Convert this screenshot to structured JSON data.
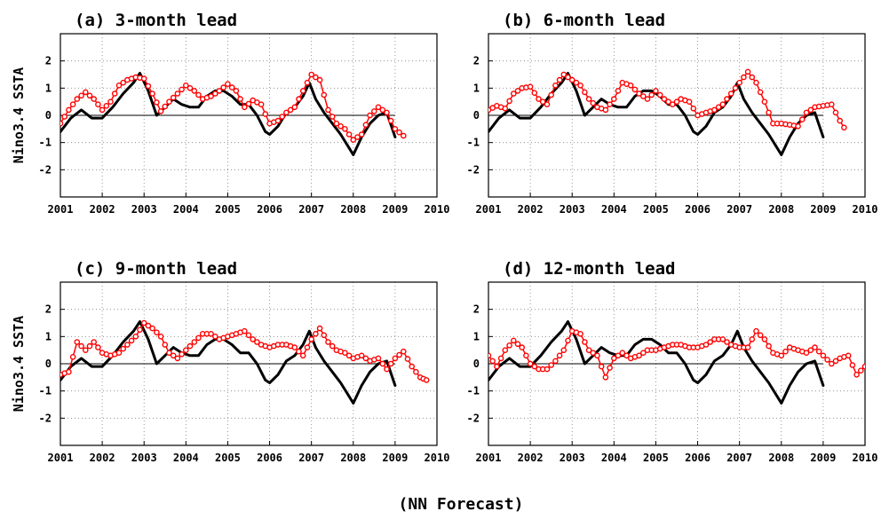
{
  "figure": {
    "footer": "(NN Forecast)"
  },
  "colors": {
    "observed": "#000000",
    "forecast": "#ff0000",
    "grid": "#808080"
  },
  "chart_data": [
    {
      "type": "line",
      "title": "(a) 3-month lead",
      "xlabel": "",
      "ylabel": "Nino3.4 SSTA",
      "xlim": [
        2001,
        2010
      ],
      "ylim": [
        -3,
        3
      ],
      "xticks": [
        "2001",
        "2002",
        "2003",
        "2004",
        "2005",
        "2006",
        "2007",
        "2008",
        "2009",
        "2010"
      ],
      "yticks": [
        "2",
        "1",
        "0",
        "-1",
        "-2"
      ],
      "grid": true,
      "series": [
        {
          "style": "solid-black",
          "x": [
            2001.0,
            2001.25,
            2001.5,
            2001.75,
            2002.0,
            2002.25,
            2002.5,
            2002.75,
            2002.9,
            2003.1,
            2003.3,
            2003.5,
            2003.7,
            2003.9,
            2004.1,
            2004.3,
            2004.5,
            2004.7,
            2004.9,
            2005.1,
            2005.3,
            2005.5,
            2005.7,
            2005.9,
            2006.0,
            2006.2,
            2006.4,
            2006.6,
            2006.8,
            2006.95,
            2007.1,
            2007.3,
            2007.5,
            2007.7,
            2007.9,
            2008.0,
            2008.2,
            2008.4,
            2008.6,
            2008.8,
            2009.0
          ],
          "y": [
            -0.6,
            -0.1,
            0.2,
            -0.1,
            -0.1,
            0.3,
            0.8,
            1.2,
            1.55,
            0.9,
            0.0,
            0.3,
            0.6,
            0.4,
            0.3,
            0.3,
            0.7,
            0.9,
            0.9,
            0.7,
            0.4,
            0.4,
            0.0,
            -0.6,
            -0.7,
            -0.4,
            0.1,
            0.3,
            0.7,
            1.2,
            0.6,
            0.1,
            -0.3,
            -0.7,
            -1.2,
            -1.45,
            -0.8,
            -0.3,
            0.0,
            0.1,
            -0.8
          ]
        },
        {
          "style": "red-circles",
          "x": [
            2001.0,
            2001.2,
            2001.4,
            2001.6,
            2001.8,
            2002.0,
            2002.2,
            2002.4,
            2002.6,
            2002.8,
            2003.0,
            2003.2,
            2003.4,
            2003.6,
            2003.8,
            2004.0,
            2004.2,
            2004.4,
            2004.6,
            2004.8,
            2005.0,
            2005.2,
            2005.4,
            2005.6,
            2005.8,
            2006.0,
            2006.2,
            2006.4,
            2006.6,
            2006.8,
            2007.0,
            2007.2,
            2007.4,
            2007.6,
            2007.8,
            2008.0,
            2008.2,
            2008.4,
            2008.6,
            2008.8,
            2009.0,
            2009.2
          ],
          "y": [
            -0.3,
            0.2,
            0.6,
            0.85,
            0.6,
            0.2,
            0.5,
            1.1,
            1.3,
            1.4,
            1.35,
            0.8,
            0.15,
            0.5,
            0.8,
            1.1,
            0.9,
            0.6,
            0.7,
            0.9,
            1.15,
            0.9,
            0.3,
            0.55,
            0.4,
            -0.3,
            -0.2,
            0.1,
            0.3,
            0.9,
            1.5,
            1.3,
            0.2,
            -0.3,
            -0.5,
            -0.9,
            -0.7,
            0.0,
            0.3,
            0.1,
            -0.5,
            -0.75
          ]
        }
      ]
    },
    {
      "type": "line",
      "title": "(b) 6-month lead",
      "xlabel": "",
      "ylabel": "",
      "xlim": [
        2001,
        2010
      ],
      "ylim": [
        -3,
        3
      ],
      "xticks": [
        "2001",
        "2002",
        "2003",
        "2004",
        "2005",
        "2006",
        "2007",
        "2008",
        "2009",
        "2010"
      ],
      "yticks": [
        "2",
        "1",
        "0",
        "-1",
        "-2"
      ],
      "grid": true,
      "series": [
        {
          "style": "solid-black",
          "x": [
            2001.0,
            2001.25,
            2001.5,
            2001.75,
            2002.0,
            2002.25,
            2002.5,
            2002.75,
            2002.9,
            2003.1,
            2003.3,
            2003.5,
            2003.7,
            2003.9,
            2004.1,
            2004.3,
            2004.5,
            2004.7,
            2004.9,
            2005.1,
            2005.3,
            2005.5,
            2005.7,
            2005.9,
            2006.0,
            2006.2,
            2006.4,
            2006.6,
            2006.8,
            2006.95,
            2007.1,
            2007.3,
            2007.5,
            2007.7,
            2007.9,
            2008.0,
            2008.2,
            2008.4,
            2008.6,
            2008.8,
            2009.0
          ],
          "y": [
            -0.6,
            -0.1,
            0.2,
            -0.1,
            -0.1,
            0.3,
            0.8,
            1.2,
            1.55,
            0.9,
            0.0,
            0.3,
            0.6,
            0.4,
            0.3,
            0.3,
            0.7,
            0.9,
            0.9,
            0.7,
            0.4,
            0.4,
            0.0,
            -0.6,
            -0.7,
            -0.4,
            0.1,
            0.3,
            0.7,
            1.2,
            0.6,
            0.1,
            -0.3,
            -0.7,
            -1.2,
            -1.45,
            -0.8,
            -0.3,
            0.0,
            0.1,
            -0.8
          ]
        },
        {
          "style": "red-circles",
          "x": [
            2001.0,
            2001.2,
            2001.4,
            2001.6,
            2001.8,
            2002.0,
            2002.2,
            2002.4,
            2002.6,
            2002.8,
            2003.0,
            2003.2,
            2003.4,
            2003.6,
            2003.8,
            2004.0,
            2004.2,
            2004.4,
            2004.6,
            2004.8,
            2005.0,
            2005.2,
            2005.4,
            2005.6,
            2005.8,
            2006.0,
            2006.2,
            2006.4,
            2006.6,
            2006.8,
            2007.0,
            2007.2,
            2007.4,
            2007.6,
            2007.8,
            2008.0,
            2008.2,
            2008.4,
            2008.6,
            2008.8,
            2009.0,
            2009.2,
            2009.4,
            2009.5
          ],
          "y": [
            0.2,
            0.35,
            0.25,
            0.8,
            1.0,
            1.05,
            0.6,
            0.4,
            1.1,
            1.5,
            1.3,
            1.1,
            0.6,
            0.3,
            0.2,
            0.6,
            1.2,
            1.1,
            0.8,
            0.6,
            0.9,
            0.6,
            0.4,
            0.6,
            0.5,
            0.0,
            0.1,
            0.2,
            0.4,
            0.8,
            1.2,
            1.6,
            1.2,
            0.5,
            -0.3,
            -0.3,
            -0.35,
            -0.4,
            0.1,
            0.3,
            0.35,
            0.4,
            -0.2,
            -0.45
          ]
        }
      ]
    },
    {
      "type": "line",
      "title": "(c) 9-month lead",
      "xlabel": "",
      "ylabel": "Nino3.4 SSTA",
      "xlim": [
        2001,
        2010
      ],
      "ylim": [
        -3,
        3
      ],
      "xticks": [
        "2001",
        "2002",
        "2003",
        "2004",
        "2005",
        "2006",
        "2007",
        "2008",
        "2009",
        "2010"
      ],
      "yticks": [
        "2",
        "1",
        "0",
        "-1",
        "-2"
      ],
      "grid": true,
      "series": [
        {
          "style": "solid-black",
          "x": [
            2001.0,
            2001.25,
            2001.5,
            2001.75,
            2002.0,
            2002.25,
            2002.5,
            2002.75,
            2002.9,
            2003.1,
            2003.3,
            2003.5,
            2003.7,
            2003.9,
            2004.1,
            2004.3,
            2004.5,
            2004.7,
            2004.9,
            2005.1,
            2005.3,
            2005.5,
            2005.7,
            2005.9,
            2006.0,
            2006.2,
            2006.4,
            2006.6,
            2006.8,
            2006.95,
            2007.1,
            2007.3,
            2007.5,
            2007.7,
            2007.9,
            2008.0,
            2008.2,
            2008.4,
            2008.6,
            2008.8,
            2009.0
          ],
          "y": [
            -0.6,
            -0.1,
            0.2,
            -0.1,
            -0.1,
            0.3,
            0.8,
            1.2,
            1.55,
            0.9,
            0.0,
            0.3,
            0.6,
            0.4,
            0.3,
            0.3,
            0.7,
            0.9,
            0.9,
            0.7,
            0.4,
            0.4,
            0.0,
            -0.6,
            -0.7,
            -0.4,
            0.1,
            0.3,
            0.7,
            1.2,
            0.6,
            0.1,
            -0.3,
            -0.7,
            -1.2,
            -1.45,
            -0.8,
            -0.3,
            0.0,
            0.1,
            -0.8
          ]
        },
        {
          "style": "red-circles",
          "x": [
            2001.0,
            2001.2,
            2001.4,
            2001.6,
            2001.8,
            2002.0,
            2002.2,
            2002.4,
            2002.6,
            2002.8,
            2003.0,
            2003.2,
            2003.4,
            2003.6,
            2003.8,
            2004.0,
            2004.2,
            2004.4,
            2004.6,
            2004.8,
            2005.0,
            2005.2,
            2005.4,
            2005.6,
            2005.8,
            2006.0,
            2006.2,
            2006.4,
            2006.6,
            2006.8,
            2007.0,
            2007.2,
            2007.4,
            2007.6,
            2007.8,
            2008.0,
            2008.2,
            2008.4,
            2008.6,
            2008.8,
            2009.0,
            2009.2,
            2009.4,
            2009.6,
            2009.75
          ],
          "y": [
            -0.4,
            -0.3,
            0.8,
            0.5,
            0.8,
            0.4,
            0.3,
            0.4,
            0.7,
            1.0,
            1.5,
            1.3,
            1.0,
            0.4,
            0.2,
            0.5,
            0.8,
            1.1,
            1.1,
            0.9,
            1.0,
            1.1,
            1.2,
            0.9,
            0.7,
            0.6,
            0.7,
            0.7,
            0.6,
            0.3,
            0.9,
            1.3,
            0.8,
            0.5,
            0.4,
            0.2,
            0.3,
            0.1,
            0.2,
            -0.2,
            0.2,
            0.45,
            -0.1,
            -0.5,
            -0.6
          ]
        }
      ]
    },
    {
      "type": "line",
      "title": "(d) 12-month lead",
      "xlabel": "",
      "ylabel": "",
      "xlim": [
        2001,
        2010
      ],
      "ylim": [
        -3,
        3
      ],
      "xticks": [
        "2001",
        "2002",
        "2003",
        "2004",
        "2005",
        "2006",
        "2007",
        "2008",
        "2009",
        "2010"
      ],
      "yticks": [
        "2",
        "1",
        "0",
        "-1",
        "-2"
      ],
      "grid": true,
      "series": [
        {
          "style": "solid-black",
          "x": [
            2001.0,
            2001.25,
            2001.5,
            2001.75,
            2002.0,
            2002.25,
            2002.5,
            2002.75,
            2002.9,
            2003.1,
            2003.3,
            2003.5,
            2003.7,
            2003.9,
            2004.1,
            2004.3,
            2004.5,
            2004.7,
            2004.9,
            2005.1,
            2005.3,
            2005.5,
            2005.7,
            2005.9,
            2006.0,
            2006.2,
            2006.4,
            2006.6,
            2006.8,
            2006.95,
            2007.1,
            2007.3,
            2007.5,
            2007.7,
            2007.9,
            2008.0,
            2008.2,
            2008.4,
            2008.6,
            2008.8,
            2009.0
          ],
          "y": [
            -0.6,
            -0.1,
            0.2,
            -0.1,
            -0.1,
            0.3,
            0.8,
            1.2,
            1.55,
            0.9,
            0.0,
            0.3,
            0.6,
            0.4,
            0.3,
            0.3,
            0.7,
            0.9,
            0.9,
            0.7,
            0.4,
            0.4,
            0.0,
            -0.6,
            -0.7,
            -0.4,
            0.1,
            0.3,
            0.7,
            1.2,
            0.6,
            0.1,
            -0.3,
            -0.7,
            -1.2,
            -1.45,
            -0.8,
            -0.3,
            0.0,
            0.1,
            -0.8
          ]
        },
        {
          "style": "red-circles",
          "x": [
            2001.0,
            2001.2,
            2001.4,
            2001.6,
            2001.8,
            2002.0,
            2002.2,
            2002.4,
            2002.6,
            2002.8,
            2003.0,
            2003.2,
            2003.4,
            2003.6,
            2003.8,
            2004.0,
            2004.2,
            2004.4,
            2004.6,
            2004.8,
            2005.0,
            2005.2,
            2005.4,
            2005.6,
            2005.8,
            2006.0,
            2006.2,
            2006.4,
            2006.6,
            2006.8,
            2007.0,
            2007.2,
            2007.4,
            2007.6,
            2007.8,
            2008.0,
            2008.2,
            2008.4,
            2008.6,
            2008.8,
            2009.0,
            2009.2,
            2009.4,
            2009.6,
            2009.8,
            2010.0
          ],
          "y": [
            0.3,
            -0.1,
            0.5,
            0.85,
            0.6,
            0.0,
            -0.2,
            -0.2,
            0.1,
            0.5,
            1.2,
            1.1,
            0.5,
            0.3,
            -0.5,
            0.2,
            0.4,
            0.2,
            0.3,
            0.5,
            0.5,
            0.6,
            0.7,
            0.7,
            0.6,
            0.6,
            0.7,
            0.9,
            0.9,
            0.7,
            0.6,
            0.6,
            1.2,
            0.9,
            0.4,
            0.3,
            0.6,
            0.5,
            0.4,
            0.6,
            0.3,
            0.0,
            0.2,
            0.3,
            -0.4,
            -0.1
          ]
        }
      ]
    }
  ]
}
